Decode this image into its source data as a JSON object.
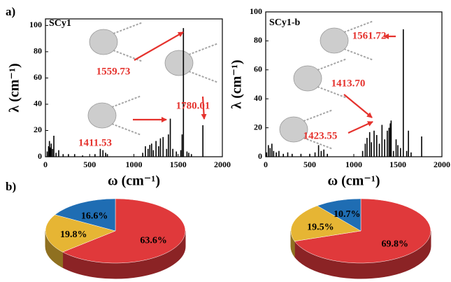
{
  "panels": [
    "a)",
    "b)"
  ],
  "chart_data": [
    {
      "type": "bar",
      "label": "SCy1",
      "xlabel": "ω (cm⁻¹)",
      "ylabel": "λ (cm⁻¹)",
      "annotations": [
        "1559.73",
        "1780.01",
        "1411.53"
      ],
      "annotation_color": "#e5322d",
      "color": "#000000",
      "x": [
        20,
        35,
        45,
        55,
        65,
        80,
        95,
        120,
        150,
        200,
        260,
        330,
        420,
        560,
        620,
        650,
        680,
        700,
        1100,
        1130,
        1160,
        1180,
        1200,
        1220,
        1250,
        1280,
        1300,
        1330,
        1370,
        1390,
        1411.53,
        1440,
        1480,
        1530,
        1545,
        1559.73,
        1600,
        1620,
        1650,
        1780.01
      ],
      "values": [
        4,
        8,
        12,
        7,
        10,
        6,
        16,
        3,
        5,
        2,
        2,
        2,
        1,
        2,
        6,
        5,
        3,
        2,
        3,
        8,
        6,
        9,
        10,
        5,
        12,
        8,
        14,
        15,
        6,
        17,
        29,
        6,
        4,
        5,
        17,
        98,
        4,
        3,
        2,
        24
      ],
      "xlim": [
        0,
        2000
      ],
      "xticks": [
        0,
        500,
        1000,
        1500,
        2000
      ],
      "ylim": [
        0,
        105
      ],
      "yticks": [
        0,
        20,
        40,
        60,
        80,
        100
      ]
    },
    {
      "type": "bar",
      "label": "SCy1-b",
      "xlabel": "ω (cm⁻¹)",
      "ylabel": "λ (cm⁻¹)",
      "annotations": [
        "1561.72",
        "1413.70",
        "1423.55"
      ],
      "annotation_color": "#e5322d",
      "color": "#000000",
      "x": [
        10,
        30,
        50,
        70,
        90,
        120,
        150,
        200,
        250,
        300,
        400,
        500,
        560,
        600,
        630,
        660,
        700,
        1100,
        1130,
        1150,
        1180,
        1200,
        1230,
        1260,
        1290,
        1320,
        1350,
        1380,
        1400,
        1413.7,
        1423.55,
        1450,
        1480,
        1500,
        1530,
        1561.72,
        1600,
        1620,
        1650,
        1770
      ],
      "values": [
        3,
        8,
        6,
        9,
        4,
        3,
        4,
        2,
        3,
        2,
        2,
        2,
        3,
        8,
        4,
        5,
        2,
        4,
        9,
        13,
        17,
        10,
        18,
        15,
        9,
        22,
        12,
        18,
        20,
        23,
        25,
        4,
        12,
        8,
        6,
        88,
        4,
        18,
        3,
        14
      ],
      "xlim": [
        0,
        2000
      ],
      "xticks": [
        0,
        500,
        1000,
        1500,
        2000
      ],
      "ylim": [
        0,
        100
      ],
      "yticks": [
        0,
        20,
        40,
        60,
        80,
        100
      ]
    },
    {
      "type": "pie",
      "values": [
        63.6,
        19.8,
        16.6
      ],
      "value_labels": [
        "63.6%",
        "19.8%",
        "16.6%"
      ],
      "colors": [
        "#e0393b",
        "#e6b534",
        "#1f6db3"
      ]
    },
    {
      "type": "pie",
      "values": [
        69.8,
        19.5,
        10.7
      ],
      "value_labels": [
        "69.8%",
        "19.5%",
        "10.7%"
      ],
      "colors": [
        "#e0393b",
        "#e6b534",
        "#1f6db3"
      ]
    }
  ]
}
